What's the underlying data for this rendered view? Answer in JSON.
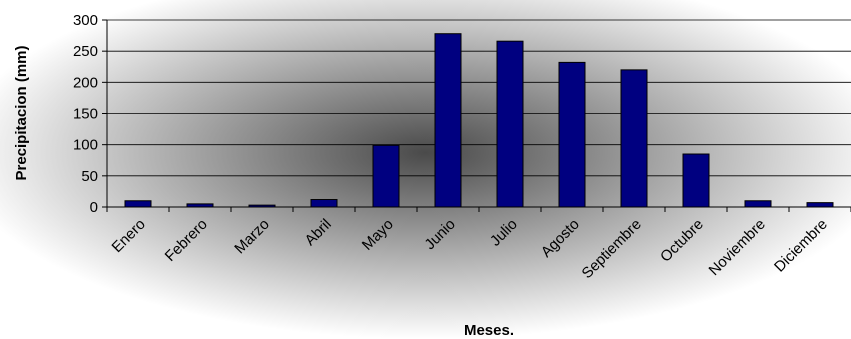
{
  "chart_data": {
    "type": "bar",
    "title": "",
    "xlabel": "Meses.",
    "ylabel": "Precipitacion (mm)",
    "categories": [
      "Enero",
      "Febrero",
      "Marzo",
      "Abril",
      "Mayo",
      "Junio",
      "Julio",
      "Agosto",
      "Septiembre",
      "Octubre",
      "Noviembre",
      "Diciembre"
    ],
    "values": [
      10,
      5,
      3,
      12,
      99,
      278,
      266,
      232,
      220,
      85,
      10,
      7
    ],
    "ylim": [
      0,
      300
    ],
    "yticks": [
      0,
      50,
      100,
      150,
      200,
      250,
      300
    ],
    "grid": true,
    "legend": "none",
    "colors": {
      "bar": "#000080",
      "bar_stroke": "#000000",
      "grid": "#000000",
      "background_center": "#4a4a4a",
      "background_edge": "#ffffff"
    }
  }
}
